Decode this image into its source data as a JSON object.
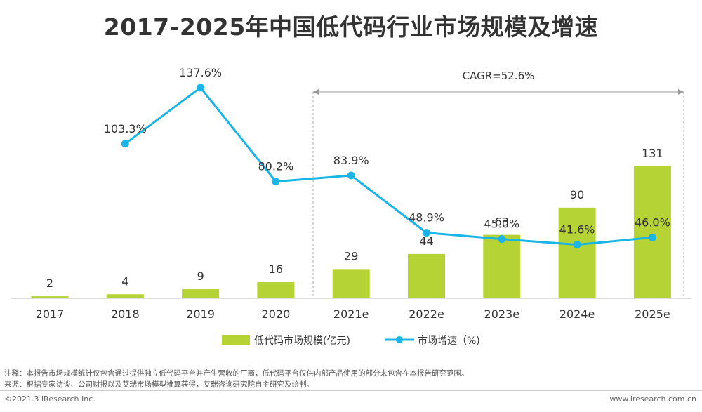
{
  "chart_data": {
    "type": "bar",
    "title": "2017-2025年中国低代码行业市场规模及增速",
    "categories": [
      "2017",
      "2018",
      "2019",
      "2020",
      "2021e",
      "2022e",
      "2023e",
      "2024e",
      "2025e"
    ],
    "series": [
      {
        "name": "低代码市场规模(亿元)",
        "type": "bar",
        "values": [
          2,
          4,
          9,
          16,
          29,
          44,
          63,
          90,
          131
        ],
        "color": "#b5d334"
      },
      {
        "name": "市场增速（%)",
        "type": "line",
        "values": [
          null,
          103.3,
          137.6,
          80.2,
          83.9,
          48.9,
          45.0,
          41.6,
          46.0
        ],
        "value_labels": [
          "",
          "103.3%",
          "137.6%",
          "80.2%",
          "83.9%",
          "48.9%",
          "45.0%",
          "41.6%",
          "46.0%"
        ],
        "color": "#1ab5e6"
      }
    ],
    "bar_ylim": [
      0,
      140
    ],
    "line_ylim": [
      0,
      145
    ],
    "annotation": "CAGR=52.6%",
    "annotation_span": [
      "2021e",
      "2025e"
    ],
    "legend_position": "bottom-center",
    "grid": false
  },
  "footnotes": {
    "note": "注释：本报告市场规模统计仅包含通过提供独立低代码平台并产生营收的厂商，低代码平台仅供内部产品使用的部分未包含在本报告研究范围。",
    "source": "来源：根据专家访谈、公司财报以及艾瑞市场模型推算获得，艾瑞咨询研究院自主研究及绘制。"
  },
  "footer": {
    "copyright": "©2021.3 iResearch Inc.",
    "website": "www.iresearch.com.cn"
  }
}
